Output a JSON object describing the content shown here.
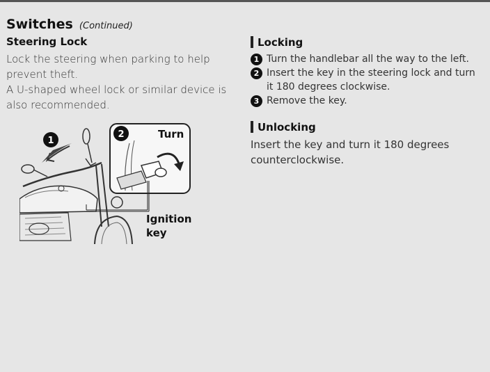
{
  "header": {
    "title": "Switches",
    "continued": "(Continued)"
  },
  "steering_lock": {
    "subtitle": "Steering Lock",
    "para1": "Lock the steering when parking to help prevent theft.",
    "para2": "A U-shaped wheel lock or similar device is also recommended."
  },
  "illustration": {
    "step1_badge": "1",
    "step2_badge": "2",
    "turn_label": "Turn",
    "ignition_label_line1": "Ignition",
    "ignition_label_line2": "key"
  },
  "locking": {
    "title": "Locking",
    "steps": [
      {
        "num": "1",
        "text": "Turn the handlebar all the way to the left."
      },
      {
        "num": "2",
        "text": "Insert the key in the steering lock and turn it 180 degrees clockwise."
      },
      {
        "num": "3",
        "text": "Remove the key."
      }
    ]
  },
  "unlocking": {
    "title": "Unlocking",
    "text": "Insert the key and turn it 180 degrees counterclockwise."
  }
}
